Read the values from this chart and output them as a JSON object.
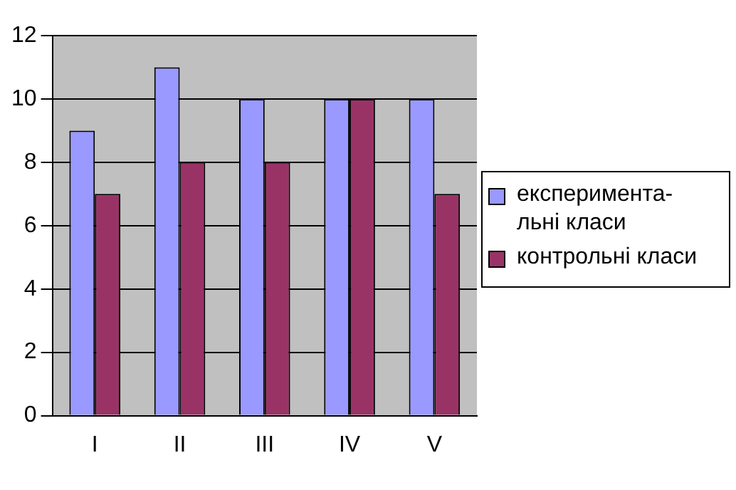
{
  "chart_data": {
    "type": "bar",
    "categories": [
      "I",
      "II",
      "III",
      "IV",
      "V"
    ],
    "series": [
      {
        "name": "експеримента-льні класи",
        "color": "#9999ff",
        "values": [
          9,
          11,
          10,
          10,
          10
        ]
      },
      {
        "name": "контрольні класи",
        "color": "#993366",
        "values": [
          7,
          8,
          8,
          10,
          7
        ]
      }
    ],
    "ylim": [
      0,
      12
    ],
    "yticks": [
      0,
      2,
      4,
      6,
      8,
      10,
      12
    ],
    "grid": "y",
    "legend": "right"
  }
}
